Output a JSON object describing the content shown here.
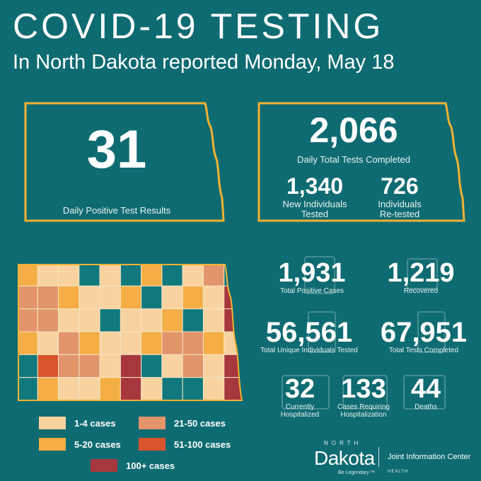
{
  "header": {
    "title": "COVID-19 TESTING",
    "subtitle": "In North Dakota reported Monday, May 18"
  },
  "daily_positive": {
    "value": "31",
    "label": "Daily Positive Test Results"
  },
  "daily_tests": {
    "value": "2,066",
    "label": "Daily Total Tests Completed",
    "new_individuals": {
      "value": "1,340",
      "label_line1": "New Individuals",
      "label_line2": "Tested"
    },
    "retested": {
      "value": "726",
      "label_line1": "Individuals",
      "label_line2": "Re-tested"
    }
  },
  "stats": {
    "total_positive": {
      "value": "1,931",
      "label": "Total Positive Cases"
    },
    "recovered": {
      "value": "1,219",
      "label": "Recovered"
    },
    "unique_tested": {
      "value": "56,561",
      "label": "Total Unique Individuals Tested"
    },
    "total_tests": {
      "value": "67,951",
      "label": "Total Tests Completed"
    },
    "hospitalized": {
      "value": "32",
      "label_line1": "Currently",
      "label_line2": "Hospitalized"
    },
    "requiring_hosp": {
      "value": "133",
      "label_line1": "Cases Requiring",
      "label_line2": "Hospitalization"
    },
    "deaths": {
      "value": "44",
      "label": "Deaths"
    }
  },
  "legend": [
    {
      "label": "1-4 cases",
      "color": "#f8d3a0"
    },
    {
      "label": "21-50 cases",
      "color": "#e2946a"
    },
    {
      "label": "5-20 cases",
      "color": "#f4ae45"
    },
    {
      "label": "51-100 cases",
      "color": "#d8542c"
    },
    {
      "label": "100+ cases",
      "color": "#a6373d"
    }
  ],
  "map": {
    "zero_color": "#11797e",
    "grid": [
      [
        1,
        1,
        1,
        0,
        1,
        0,
        1,
        0,
        1,
        2,
        0
      ],
      [
        2,
        2,
        1,
        1,
        1,
        1,
        0,
        1,
        1,
        1,
        4
      ],
      [
        2,
        2,
        1,
        1,
        0,
        1,
        1,
        1,
        0,
        1,
        4
      ],
      [
        1,
        1,
        2,
        1,
        1,
        1,
        1,
        2,
        2,
        1,
        1
      ],
      [
        0,
        3,
        2,
        2,
        1,
        4,
        0,
        1,
        2,
        1,
        4
      ],
      [
        0,
        1,
        1,
        1,
        1,
        4,
        1,
        0,
        0,
        1,
        4
      ]
    ]
  },
  "footer": {
    "state_small": "NORTH",
    "state": "Dakota",
    "tagline": "Be Legendary.™",
    "divider_text": "Joint Information Center",
    "dept": "HEALTH"
  }
}
